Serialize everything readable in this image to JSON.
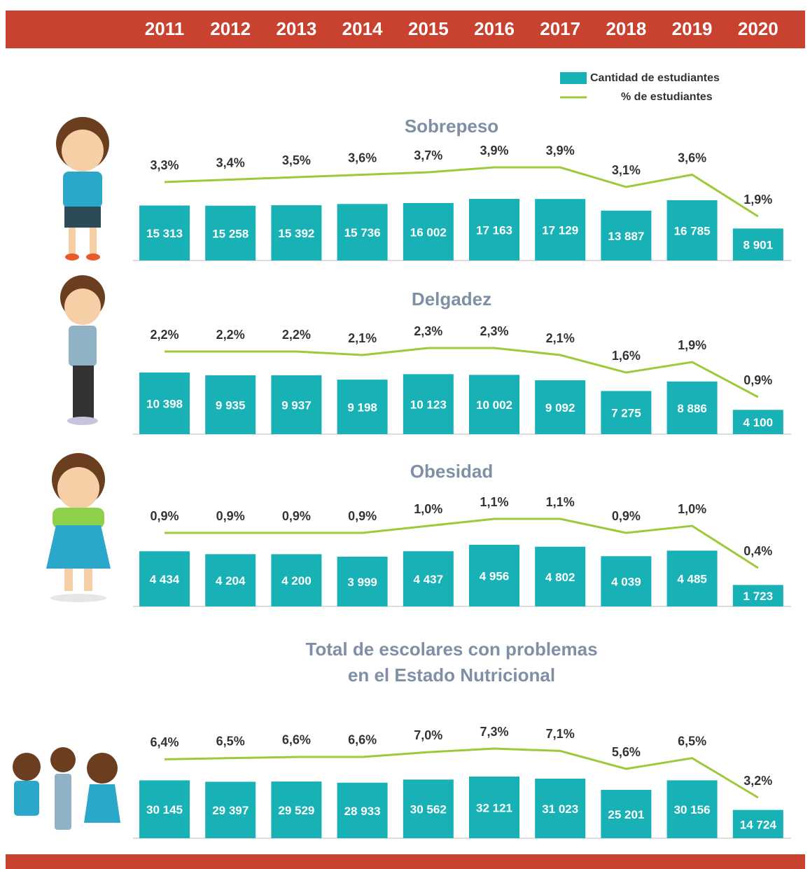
{
  "categories": [
    "2011",
    "2012",
    "2013",
    "2014",
    "2015",
    "2016",
    "2017",
    "2018",
    "2019",
    "2020"
  ],
  "legend": [
    {
      "name": "Cantidad de estudiantes",
      "color": "#17b1b6"
    },
    {
      "name": "% de estudiantes",
      "color": "#9dc93b"
    }
  ],
  "chart_data": [
    {
      "type": "bar-line",
      "title": [
        "Sobrepeso"
      ],
      "bars": {
        "values": [
          15313,
          15258,
          15392,
          15736,
          16002,
          17163,
          17129,
          13887,
          16785,
          8901
        ],
        "value_labels": [
          "15 313",
          "15 258",
          "15 392",
          "15 736",
          "16 002",
          "17 163",
          "17 129",
          "13 887",
          "16 785",
          "8 901"
        ]
      },
      "line": {
        "values": [
          3.3,
          3.4,
          3.5,
          3.6,
          3.7,
          3.9,
          3.9,
          3.1,
          3.6,
          1.9
        ],
        "value_labels": [
          "3,3%",
          "3,4%",
          "3,5%",
          "3,6%",
          "3,7%",
          "3,9%",
          "3,9%",
          "3,1%",
          "3,6%",
          "1,9%"
        ]
      }
    },
    {
      "type": "bar-line",
      "title": [
        "Delgadez"
      ],
      "bars": {
        "values": [
          10398,
          9935,
          9937,
          9198,
          10123,
          10002,
          9092,
          7275,
          8886,
          4100
        ],
        "value_labels": [
          "10 398",
          "9 935",
          "9 937",
          "9 198",
          "10 123",
          "10 002",
          "9 092",
          "7 275",
          "8 886",
          "4 100"
        ]
      },
      "line": {
        "values": [
          2.2,
          2.2,
          2.2,
          2.1,
          2.3,
          2.3,
          2.1,
          1.6,
          1.9,
          0.9
        ],
        "value_labels": [
          "2,2%",
          "2,2%",
          "2,2%",
          "2,1%",
          "2,3%",
          "2,3%",
          "2,1%",
          "1,6%",
          "1,9%",
          "0,9%"
        ]
      }
    },
    {
      "type": "bar-line",
      "title": [
        "Obesidad"
      ],
      "bars": {
        "values": [
          4434,
          4204,
          4200,
          3999,
          4437,
          4956,
          4802,
          4039,
          4485,
          1723
        ],
        "value_labels": [
          "4 434",
          "4 204",
          "4 200",
          "3 999",
          "4 437",
          "4 956",
          "4 802",
          "4 039",
          "4 485",
          "1 723"
        ]
      },
      "line": {
        "values": [
          0.9,
          0.9,
          0.9,
          0.9,
          1.0,
          1.1,
          1.1,
          0.9,
          1.0,
          0.4
        ],
        "value_labels": [
          "0,9%",
          "0,9%",
          "0,9%",
          "0,9%",
          "1,0%",
          "1,1%",
          "1,1%",
          "0,9%",
          "1,0%",
          "0,4%"
        ]
      }
    },
    {
      "type": "bar-line",
      "title": [
        "Total de escolares con problemas",
        "en el Estado Nutricional"
      ],
      "bars": {
        "values": [
          30145,
          29397,
          29529,
          28933,
          30562,
          32121,
          31023,
          25201,
          30156,
          14724
        ],
        "value_labels": [
          "30 145",
          "29 397",
          "29 529",
          "28 933",
          "30 562",
          "32 121",
          "31 023",
          "25 201",
          "30 156",
          "14 724"
        ]
      },
      "line": {
        "values": [
          6.4,
          6.5,
          6.6,
          6.6,
          7.0,
          7.3,
          7.1,
          5.6,
          6.5,
          3.2
        ],
        "value_labels": [
          "6,4%",
          "6,5%",
          "6,6%",
          "6,6%",
          "7,0%",
          "7,3%",
          "7,1%",
          "5,6%",
          "6,5%",
          "3,2%"
        ]
      }
    }
  ]
}
